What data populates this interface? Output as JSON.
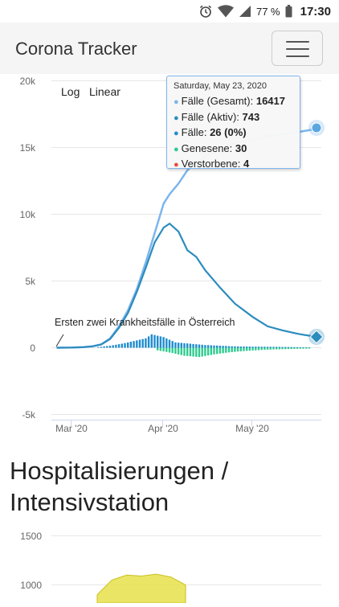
{
  "status_bar": {
    "battery": "77 %",
    "time": "17:30"
  },
  "navbar": {
    "brand": "Corona Tracker",
    "menu_icon": "hamburger-menu-icon"
  },
  "chart1": {
    "scale_buttons": {
      "log": "Log",
      "linear": "Linear"
    },
    "y_ticks": [
      "20k",
      "15k",
      "10k",
      "5k",
      "0",
      "-5k"
    ],
    "x_ticks": [
      "Mar '20",
      "Apr '20",
      "May '20"
    ],
    "annotation": "Ersten zwei Krankheitsfälle in Österreich",
    "tooltip": {
      "date": "Saturday, May 23, 2020",
      "rows": [
        {
          "label": "Fälle (Gesamt): ",
          "value": "16417",
          "color": "#7cb5ec"
        },
        {
          "label": "Fälle (Aktiv): ",
          "value": "743",
          "color": "#2b8cbe"
        },
        {
          "label": "Fälle: ",
          "value": "26 (0%)",
          "color": "#1f8ccf"
        },
        {
          "label": "Genesene: ",
          "value": "30",
          "color": "#2ecc8f"
        },
        {
          "label": "Verstorbene: ",
          "value": "4",
          "color": "#e74c3c"
        }
      ]
    }
  },
  "chart_data": [
    {
      "type": "line",
      "title": "",
      "xlabel": "",
      "ylabel": "",
      "ylim": [
        -5000,
        20000
      ],
      "x_tick_labels": [
        "Mar '20",
        "Apr '20",
        "May '20"
      ],
      "colors": {
        "total": "#7cb5ec",
        "active": "#2b8cbe",
        "new_cases": "#1f8ccf",
        "recovered": "#2ecc8f",
        "deaths": "#e74c3c"
      },
      "x": [
        "2020-02-25",
        "2020-03-01",
        "2020-03-05",
        "2020-03-08",
        "2020-03-11",
        "2020-03-14",
        "2020-03-17",
        "2020-03-20",
        "2020-03-23",
        "2020-03-26",
        "2020-03-29",
        "2020-04-01",
        "2020-04-03",
        "2020-04-06",
        "2020-04-09",
        "2020-04-12",
        "2020-04-15",
        "2020-04-20",
        "2020-04-25",
        "2020-05-01",
        "2020-05-06",
        "2020-05-11",
        "2020-05-16",
        "2020-05-20",
        "2020-05-23"
      ],
      "series": [
        {
          "name": "Fälle (Gesamt)",
          "values": [
            2,
            10,
            40,
            100,
            250,
            700,
            1600,
            2800,
            4400,
            6400,
            8600,
            10800,
            11500,
            12300,
            13300,
            13900,
            14300,
            14900,
            15300,
            15600,
            15850,
            16000,
            16150,
            16300,
            16417
          ]
        },
        {
          "name": "Fälle (Aktiv)",
          "values": [
            2,
            10,
            40,
            100,
            250,
            650,
            1500,
            2600,
            4200,
            6000,
            7900,
            9000,
            9300,
            8700,
            7300,
            6800,
            5800,
            4500,
            3300,
            2300,
            1600,
            1300,
            1050,
            900,
            743
          ]
        }
      ],
      "daily_new_cases_estimated": {
        "x": [
          "2020-03-10",
          "2020-03-14",
          "2020-03-18",
          "2020-03-22",
          "2020-03-26",
          "2020-03-28",
          "2020-04-01",
          "2020-04-05",
          "2020-04-10",
          "2020-04-15",
          "2020-04-20",
          "2020-04-25",
          "2020-05-01",
          "2020-05-10",
          "2020-05-20"
        ],
        "values": [
          50,
          150,
          300,
          500,
          700,
          1000,
          800,
          400,
          300,
          200,
          150,
          100,
          80,
          60,
          30
        ]
      },
      "daily_recovered_estimated": {
        "x": [
          "2020-03-30",
          "2020-04-04",
          "2020-04-08",
          "2020-04-13",
          "2020-04-18",
          "2020-04-23",
          "2020-04-28",
          "2020-05-05",
          "2020-05-12",
          "2020-05-20"
        ],
        "values": [
          200,
          400,
          600,
          700,
          500,
          350,
          250,
          150,
          100,
          60
        ]
      },
      "highlight_date": "2020-05-23"
    },
    {
      "type": "area",
      "title": "Hospitalisierungen / Intensivstation",
      "y_tick_labels": [
        "1500",
        "1000"
      ],
      "ylim": [
        1000,
        1500
      ],
      "x": [
        "2020-03-26",
        "2020-03-29",
        "2020-04-01",
        "2020-04-04",
        "2020-04-07",
        "2020-04-10",
        "2020-04-13"
      ],
      "values": [
        900,
        1050,
        1100,
        1090,
        1110,
        1080,
        1000
      ],
      "color": "#e8e04a"
    }
  ],
  "section2": {
    "title": "Hospitalisierungen / Intensivstation",
    "y_ticks": [
      "1500",
      "1000"
    ]
  }
}
